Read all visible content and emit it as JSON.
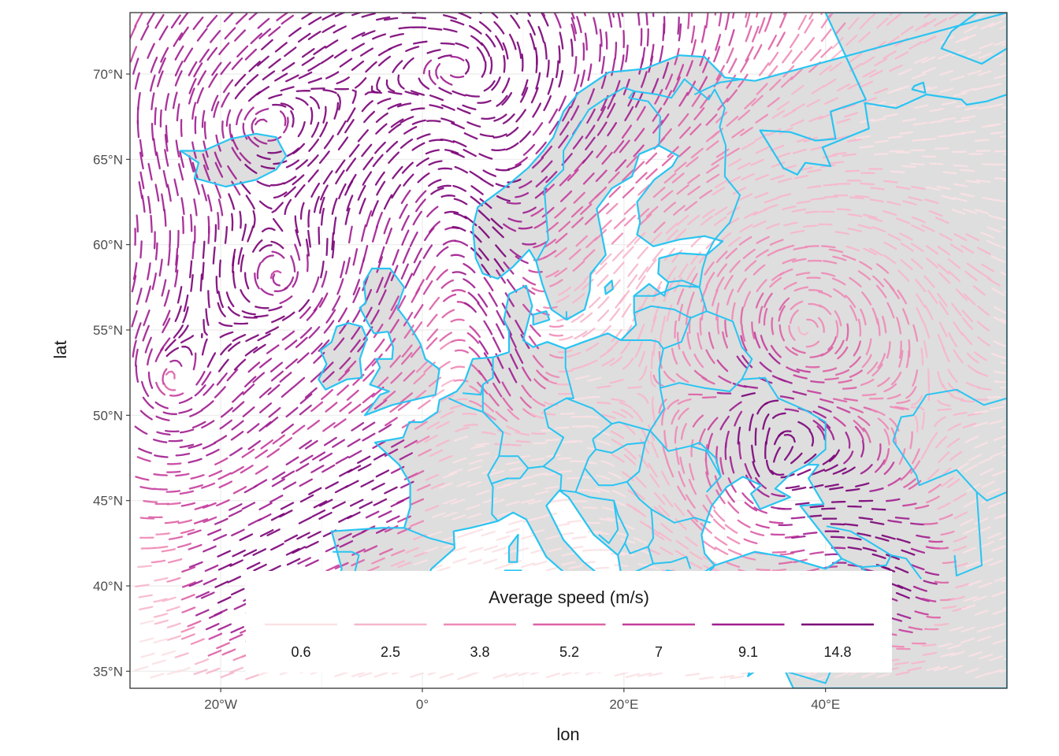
{
  "chart_data": {
    "type": "map",
    "x_label": "lon",
    "y_label": "lat",
    "xlim": [
      -29,
      58
    ],
    "ylim": [
      34,
      73.6
    ],
    "x_ticks": [
      {
        "value": -20,
        "label": "20°W"
      },
      {
        "value": 0,
        "label": "0°"
      },
      {
        "value": 20,
        "label": "20°E"
      },
      {
        "value": 40,
        "label": "40°E"
      }
    ],
    "y_ticks": [
      {
        "value": 35,
        "label": "35°N"
      },
      {
        "value": 40,
        "label": "40°N"
      },
      {
        "value": 45,
        "label": "45°N"
      },
      {
        "value": 50,
        "label": "50°N"
      },
      {
        "value": 55,
        "label": "55°N"
      },
      {
        "value": 60,
        "label": "60°N"
      },
      {
        "value": 65,
        "label": "65°N"
      },
      {
        "value": 70,
        "label": "70°N"
      }
    ],
    "grid": true,
    "land_color": "#dedede",
    "border_color": "#29c4f2",
    "legend": {
      "title": "Average speed (m/s)",
      "placement": "bottom-center inside plot",
      "entries": [
        {
          "label": "0.6",
          "color": "#fbe1e4"
        },
        {
          "label": "2.5",
          "color": "#f6b7cb"
        },
        {
          "label": "3.8",
          "color": "#ee89b6"
        },
        {
          "label": "5.2",
          "color": "#dd61a5"
        },
        {
          "label": "7",
          "color": "#c53c9c"
        },
        {
          "label": "9.1",
          "color": "#a01d8f"
        },
        {
          "label": "14.8",
          "color": "#7a0177"
        }
      ]
    },
    "wind_features": [
      {
        "kind": "cyclone",
        "lon": 3,
        "lat": 70.2,
        "speed": 14.8
      },
      {
        "kind": "cyclone",
        "lon": -25,
        "lat": 52,
        "speed": 9.1
      },
      {
        "kind": "cyclone",
        "lon": -14,
        "lat": 58,
        "speed": 9.1
      },
      {
        "kind": "cyclone",
        "lon": -16,
        "lat": 67,
        "speed": 5.2
      },
      {
        "kind": "anticyclone",
        "lon": 38,
        "lat": 55,
        "speed": 2.5
      },
      {
        "kind": "cyclone",
        "lon": 35,
        "lat": 47,
        "speed": 3.8
      }
    ],
    "jets": [
      {
        "from_lon": -20,
        "from_lat": 40,
        "to_lon": -5,
        "to_lat": 46,
        "speed": 14.8
      },
      {
        "from_lon": 4,
        "from_lat": 68,
        "to_lon": 8,
        "to_lat": 54,
        "speed": 9.1
      },
      {
        "from_lon": 34,
        "from_lat": 49,
        "to_lon": 47,
        "to_lat": 41,
        "speed": 14.8
      }
    ]
  }
}
